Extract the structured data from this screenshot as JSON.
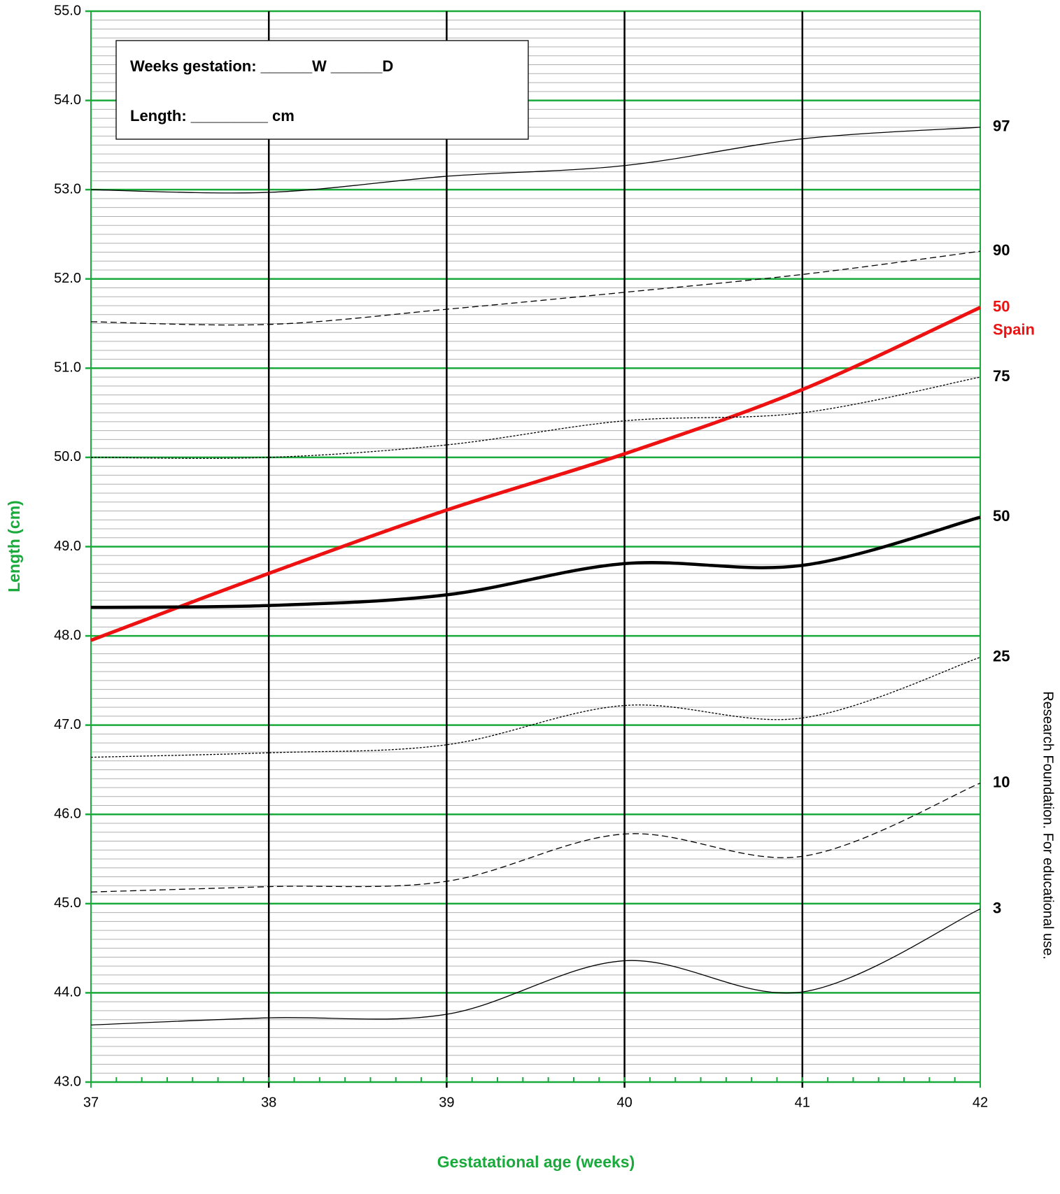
{
  "chart_data": {
    "type": "line",
    "ylabel": "Length (cm)",
    "xlabel": "Gestatational age (weeks)",
    "side_note": "Research Foundation. For educational use.",
    "box_lines": [
      "Weeks gestation:  ______W ______D",
      "Length: _________ cm"
    ],
    "x": [
      37,
      38,
      39,
      40,
      41,
      42
    ],
    "xlim": [
      37,
      42
    ],
    "xticks": [
      37,
      38,
      39,
      40,
      41,
      42
    ],
    "x_minor_ticks_per_unit": 7,
    "ylim": [
      43,
      55
    ],
    "yticks": [
      {
        "value": 43,
        "label": "43.0"
      },
      {
        "value": 44,
        "label": "44.0"
      },
      {
        "value": 45,
        "label": "45.0"
      },
      {
        "value": 46,
        "label": "46.0"
      },
      {
        "value": 47,
        "label": "47.0"
      },
      {
        "value": 48,
        "label": "48.0"
      },
      {
        "value": 49,
        "label": "49.0"
      },
      {
        "value": 50,
        "label": "50.0"
      },
      {
        "value": 51,
        "label": "51.0"
      },
      {
        "value": 52,
        "label": "52.0"
      },
      {
        "value": 53,
        "label": "53.0"
      },
      {
        "value": 54,
        "label": "54.0"
      },
      {
        "value": 55,
        "label": "55.0"
      }
    ],
    "minor_grid_step": 0.1,
    "grid_color": "#1aaa3c",
    "minor_grid_color": "#b0b0b0",
    "series": [
      {
        "name": "97",
        "color": "#000000",
        "style": "solid",
        "width": 1.3,
        "values": [
          53.0,
          52.97,
          53.15,
          53.27,
          53.57,
          53.7
        ]
      },
      {
        "name": "90",
        "color": "#000000",
        "style": "dashed",
        "width": 1.3,
        "values": [
          51.52,
          51.49,
          51.66,
          51.85,
          52.05,
          52.31
        ]
      },
      {
        "name": "50",
        "sublabel": "Spain",
        "color": "#ee1111",
        "style": "solid",
        "width": 5,
        "values": [
          47.95,
          48.7,
          49.41,
          50.04,
          50.76,
          51.68
        ]
      },
      {
        "name": "75",
        "color": "#000000",
        "style": "dotted",
        "width": 1.3,
        "values": [
          50.0,
          50.0,
          50.14,
          50.41,
          50.5,
          50.9
        ]
      },
      {
        "name": "50",
        "color": "#000000",
        "style": "solid",
        "width": 4.5,
        "values": [
          48.32,
          48.34,
          48.46,
          48.81,
          48.79,
          49.33
        ]
      },
      {
        "name": "25",
        "color": "#000000",
        "style": "dotted",
        "width": 1.3,
        "values": [
          46.64,
          46.69,
          46.78,
          47.22,
          47.08,
          47.76
        ]
      },
      {
        "name": "10",
        "color": "#000000",
        "style": "dashed",
        "width": 1.3,
        "values": [
          45.13,
          45.19,
          45.25,
          45.78,
          45.53,
          46.35
        ]
      },
      {
        "name": "3",
        "color": "#000000",
        "style": "solid",
        "width": 1.3,
        "values": [
          43.64,
          43.72,
          43.76,
          44.36,
          44.01,
          44.94
        ]
      }
    ]
  }
}
